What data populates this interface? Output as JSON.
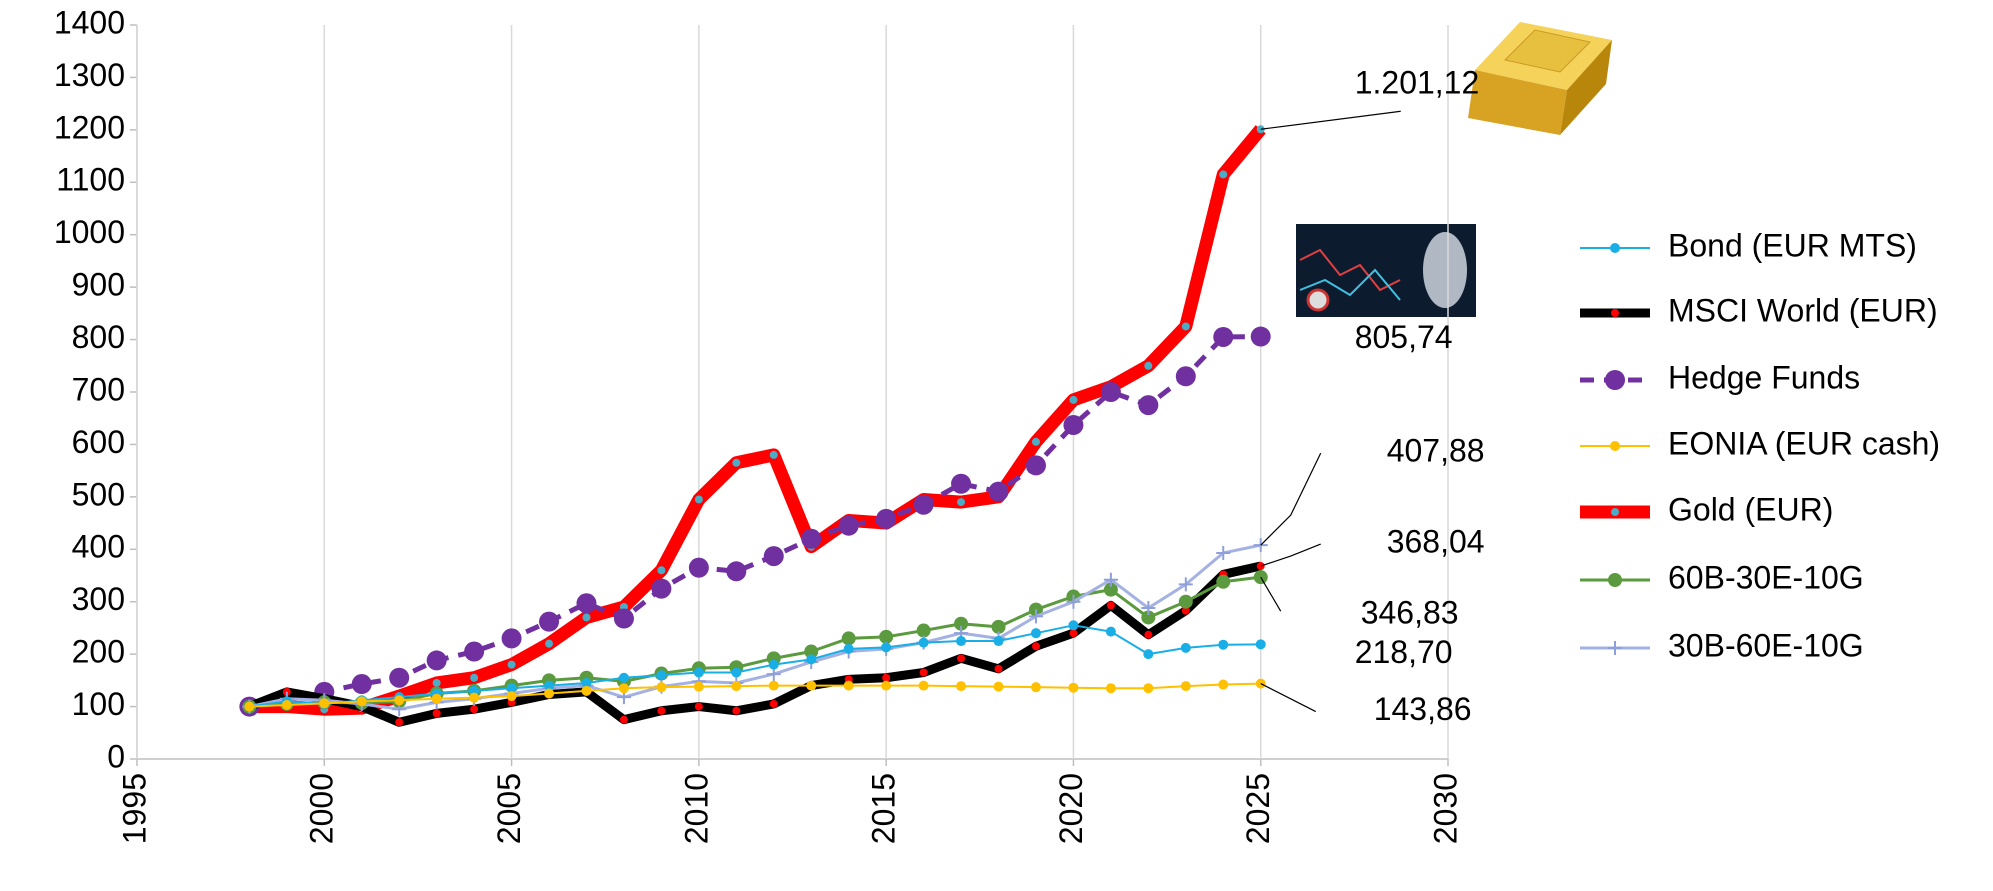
{
  "chart_data": {
    "type": "line",
    "x": [
      1998,
      1999,
      2000,
      2001,
      2002,
      2003,
      2004,
      2005,
      2006,
      2007,
      2008,
      2009,
      2010,
      2011,
      2012,
      2013,
      2014,
      2015,
      2016,
      2017,
      2018,
      2019,
      2020,
      2021,
      2022,
      2023,
      2024,
      2025
    ],
    "xlim": [
      1995,
      2030
    ],
    "xticks": [
      1995,
      2000,
      2005,
      2010,
      2015,
      2020,
      2025,
      2030
    ],
    "ylim": [
      0,
      1400
    ],
    "yticks": [
      0,
      100,
      200,
      300,
      400,
      500,
      600,
      700,
      800,
      900,
      1000,
      1100,
      1200,
      1300,
      1400
    ],
    "grid": "x",
    "legend": "right",
    "series": [
      {
        "name": "Bond (EUR MTS)",
        "color": "#1aaee6",
        "line_width": 2,
        "dash": "solid",
        "marker": "circle",
        "marker_color": "#1aaee6",
        "marker_size": 5,
        "values": [
          100,
          110,
          105,
          112,
          118,
          125,
          130,
          135,
          140,
          145,
          155,
          160,
          165,
          165,
          180,
          190,
          210,
          213,
          222,
          225,
          225,
          240,
          255,
          243,
          200,
          212,
          218,
          218.7
        ],
        "end_label": "218,70"
      },
      {
        "name": "MSCI World (EUR)",
        "color": "#000000",
        "line_width": 9,
        "dash": "solid",
        "marker": "circle",
        "marker_color": "#ff0000",
        "marker_size": 4,
        "values": [
          100,
          128,
          115,
          100,
          70,
          87,
          95,
          108,
          123,
          128,
          75,
          92,
          100,
          92,
          105,
          140,
          152,
          155,
          165,
          192,
          172,
          215,
          240,
          293,
          237,
          283,
          352,
          368.04
        ],
        "end_label": "368,04"
      },
      {
        "name": "Hedge Funds",
        "color": "#7030a0",
        "line_width": 5,
        "dash": "dashed",
        "marker": "circle",
        "marker_color": "#7030a0",
        "marker_size": 10,
        "values": [
          100,
          115,
          128,
          143,
          155,
          188,
          205,
          230,
          262,
          297,
          268,
          325,
          365,
          358,
          387,
          420,
          445,
          458,
          485,
          525,
          510,
          560,
          637,
          700,
          675,
          730,
          805,
          805.74
        ],
        "end_label": "805,74"
      },
      {
        "name": "EONIA (EUR cash)",
        "color": "#ffc000",
        "line_width": 2,
        "dash": "solid",
        "marker": "circle",
        "marker_color": "#ffc000",
        "marker_size": 5,
        "values": [
          100,
          103,
          106,
          110,
          112,
          115,
          117,
          120,
          125,
          130,
          135,
          137,
          138,
          139,
          140,
          140,
          140,
          140,
          140,
          139,
          138,
          137,
          136,
          135,
          135,
          139,
          142,
          143.86
        ],
        "end_label": "143,86"
      },
      {
        "name": "Gold (EUR)",
        "color": "#ff0000",
        "line_width": 13,
        "dash": "solid",
        "marker": "circle",
        "marker_color": "#4bacc6",
        "marker_size": 4,
        "values": [
          100,
          100,
          95,
          97,
          120,
          145,
          155,
          180,
          220,
          270,
          290,
          360,
          495,
          565,
          580,
          405,
          455,
          450,
          495,
          490,
          500,
          605,
          685,
          710,
          750,
          825,
          1115,
          1201.12
        ],
        "end_label": "1.201,12"
      },
      {
        "name": "60B-30E-10G",
        "color": "#5b9a3e",
        "line_width": 3,
        "dash": "solid",
        "marker": "circle",
        "marker_color": "#5b9a3e",
        "marker_size": 7,
        "values": [
          100,
          105,
          108,
          107,
          110,
          125,
          130,
          140,
          150,
          155,
          148,
          163,
          173,
          175,
          192,
          205,
          230,
          233,
          245,
          258,
          252,
          285,
          310,
          323,
          270,
          300,
          338,
          346.83
        ],
        "end_label": "346,83"
      },
      {
        "name": "30B-60E-10G",
        "color": "#a3b1e3",
        "line_width": 3,
        "dash": "solid",
        "marker": "plus",
        "marker_color": "#8e9fd9",
        "marker_size": 7,
        "values": [
          100,
          115,
          112,
          105,
          95,
          108,
          115,
          125,
          135,
          140,
          118,
          138,
          148,
          145,
          162,
          185,
          205,
          210,
          222,
          240,
          230,
          272,
          300,
          342,
          288,
          333,
          393,
          407.88
        ],
        "end_label": "407,88"
      }
    ]
  }
}
